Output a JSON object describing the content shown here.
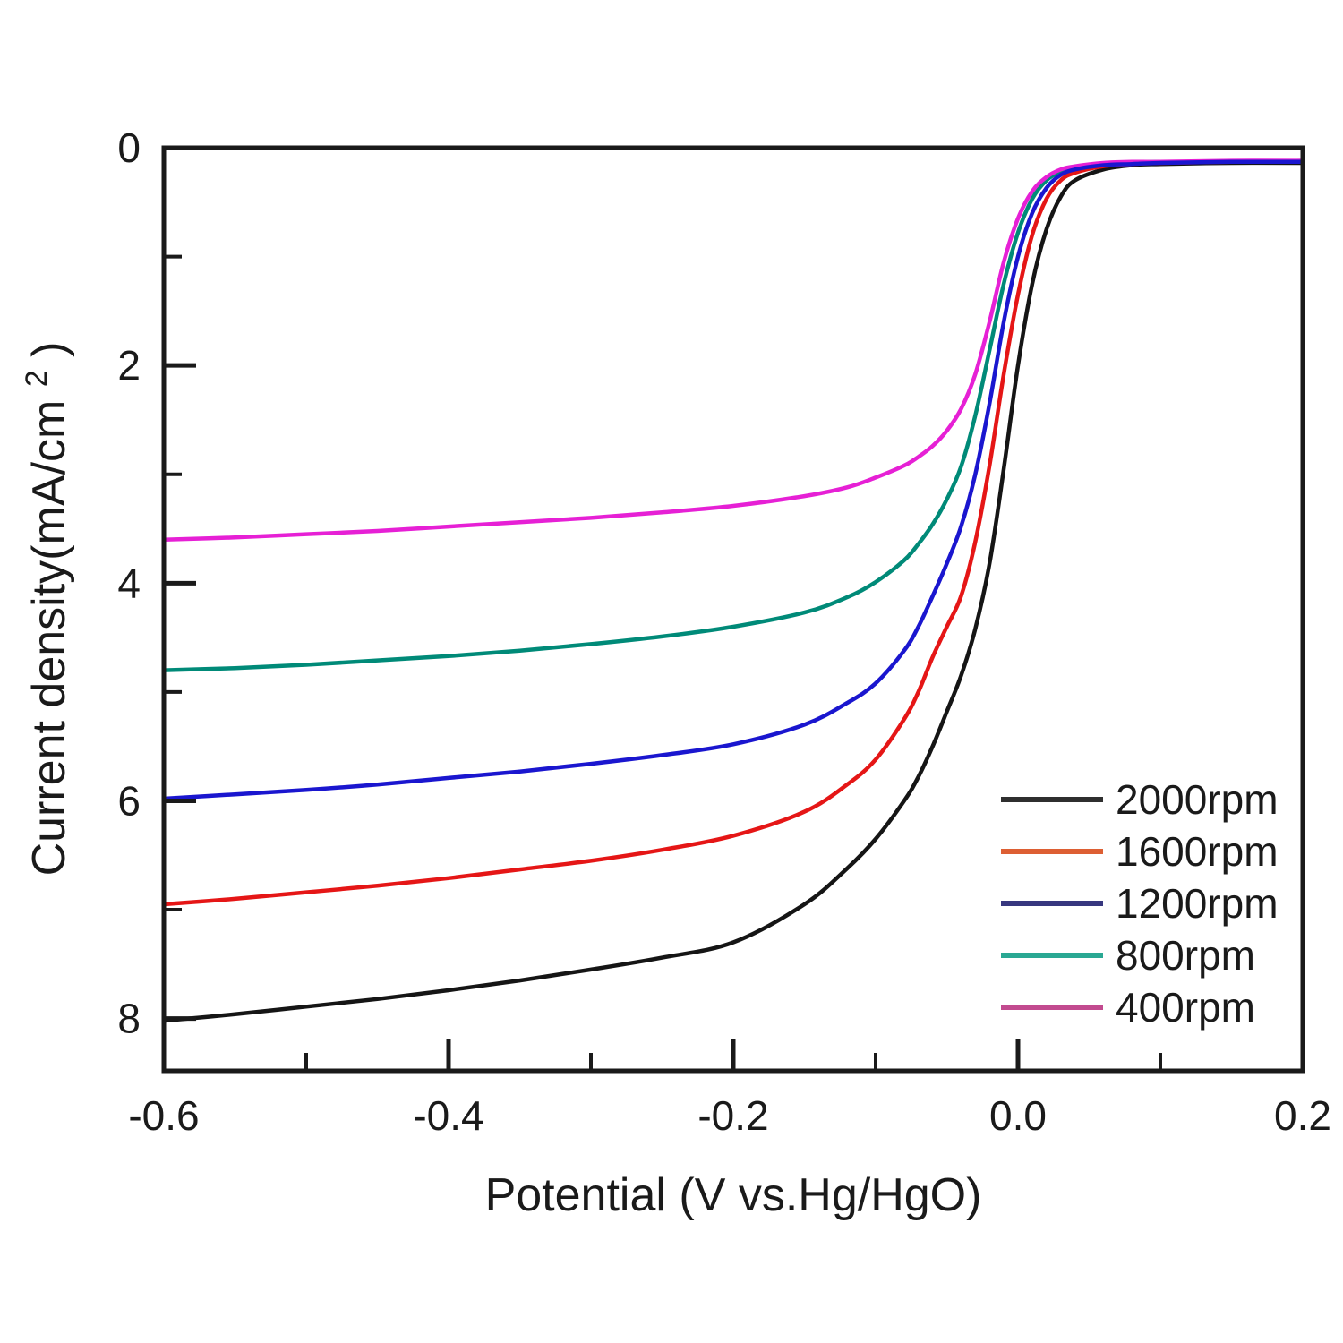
{
  "chart_data": {
    "type": "line",
    "title": "",
    "xlabel": "Potential (V vs.Hg/HgO)",
    "ylabel": {
      "main": "Current density(mA/cm",
      "sup": "2",
      "suffix": " )"
    },
    "xlim": [
      -0.6,
      0.2
    ],
    "ylim": [
      0,
      8.48
    ],
    "y_axis_inverted": true,
    "grid": false,
    "legend_position": "inside-lower-right",
    "x_major_ticks": [
      -0.6,
      -0.4,
      -0.2,
      0.0,
      0.2
    ],
    "x_major_tick_labels": [
      "-0.6",
      "-0.4",
      "-0.2",
      "0.0",
      "0.2"
    ],
    "x_minor_ticks": [
      -0.5,
      -0.3,
      -0.1,
      0.1
    ],
    "y_major_ticks": [
      0,
      2,
      4,
      6,
      8
    ],
    "y_major_tick_labels": [
      "0",
      "2",
      "4",
      "6",
      "8"
    ],
    "y_minor_ticks": [
      1,
      3,
      5,
      7
    ],
    "x": [
      -0.6,
      -0.55,
      -0.5,
      -0.45,
      -0.4,
      -0.35,
      -0.3,
      -0.25,
      -0.2,
      -0.15,
      -0.12,
      -0.1,
      -0.08,
      -0.07,
      -0.06,
      -0.05,
      -0.04,
      -0.03,
      -0.02,
      -0.01,
      0.0,
      0.01,
      0.02,
      0.03,
      0.04,
      0.06,
      0.08,
      0.1,
      0.15,
      0.2
    ],
    "series": [
      {
        "name": "2000rpm",
        "color": "#151515",
        "legend_color": "#2f2f2f",
        "values": [
          8.02,
          7.96,
          7.89,
          7.82,
          7.74,
          7.65,
          7.55,
          7.44,
          7.3,
          6.95,
          6.62,
          6.35,
          6.0,
          5.78,
          5.5,
          5.18,
          4.85,
          4.42,
          3.82,
          2.95,
          2.0,
          1.25,
          0.75,
          0.45,
          0.3,
          0.2,
          0.16,
          0.15,
          0.14,
          0.14
        ]
      },
      {
        "name": "1600rpm",
        "color": "#e51616",
        "legend_color": "#dd5f33",
        "values": [
          6.95,
          6.9,
          6.84,
          6.78,
          6.71,
          6.63,
          6.55,
          6.45,
          6.32,
          6.1,
          5.85,
          5.62,
          5.25,
          5.0,
          4.68,
          4.4,
          4.12,
          3.62,
          2.92,
          2.08,
          1.35,
          0.8,
          0.47,
          0.3,
          0.23,
          0.17,
          0.15,
          0.14,
          0.13,
          0.13
        ]
      },
      {
        "name": "1200rpm",
        "color": "#1a16cf",
        "legend_color": "#37377f",
        "values": [
          5.98,
          5.94,
          5.9,
          5.85,
          5.79,
          5.73,
          5.66,
          5.58,
          5.48,
          5.3,
          5.1,
          4.92,
          4.62,
          4.4,
          4.12,
          3.82,
          3.48,
          3.0,
          2.35,
          1.6,
          1.0,
          0.6,
          0.37,
          0.25,
          0.2,
          0.16,
          0.15,
          0.14,
          0.13,
          0.13
        ]
      },
      {
        "name": "800rpm",
        "color": "#008a78",
        "legend_color": "#2aa893",
        "values": [
          4.8,
          4.78,
          4.75,
          4.71,
          4.67,
          4.62,
          4.56,
          4.49,
          4.4,
          4.27,
          4.13,
          3.99,
          3.79,
          3.64,
          3.46,
          3.23,
          2.93,
          2.46,
          1.86,
          1.25,
          0.78,
          0.47,
          0.3,
          0.22,
          0.18,
          0.15,
          0.14,
          0.13,
          0.13,
          0.12
        ]
      },
      {
        "name": "400rpm",
        "color": "#e620d5",
        "legend_color": "#c24a8f",
        "values": [
          3.6,
          3.58,
          3.55,
          3.52,
          3.48,
          3.44,
          3.4,
          3.35,
          3.29,
          3.2,
          3.12,
          3.03,
          2.92,
          2.84,
          2.74,
          2.6,
          2.4,
          2.08,
          1.6,
          1.05,
          0.65,
          0.4,
          0.27,
          0.2,
          0.17,
          0.14,
          0.13,
          0.13,
          0.12,
          0.12
        ]
      }
    ]
  },
  "colors": {
    "axis": "#1a1a1a",
    "background": "#ffffff",
    "text": "#1a1a1a"
  }
}
